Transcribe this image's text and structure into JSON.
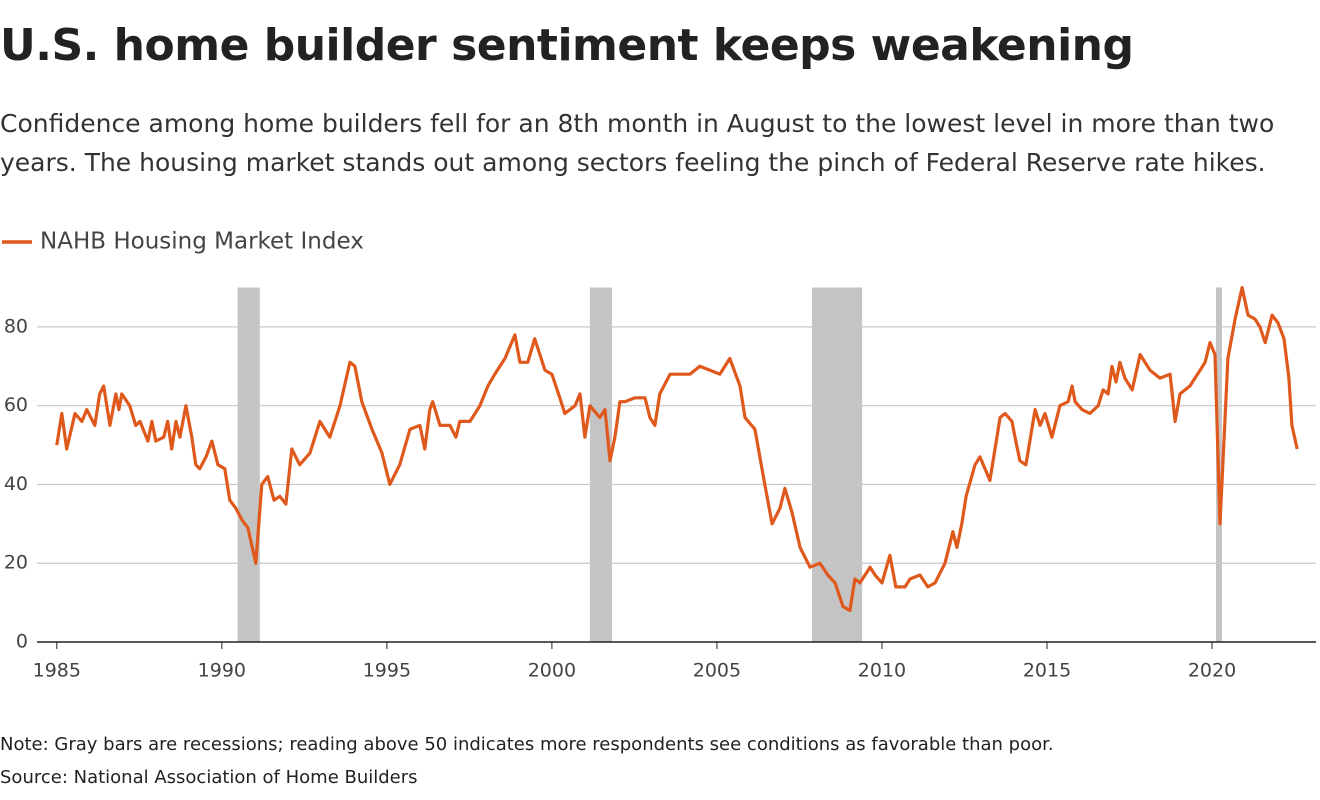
{
  "chart_data": {
    "type": "line",
    "title": "U.S. home builder sentiment keeps weakening",
    "subtitle": "Confidence among home builders fell for an 8th month in August to the lowest level in more than two years. The housing market stands out among sectors feeling the pinch of Federal Reserve rate hikes.",
    "note": "Note: Gray bars are recessions; reading above 50 indicates more respondents see conditions as favorable than poor.",
    "source": "Source: National Association of Home Builders",
    "recession_color": "#c4c4c4",
    "recessions": [
      [
        1990.48,
        1991.15
      ],
      [
        2001.15,
        2001.82
      ],
      [
        2007.88,
        2009.4
      ],
      [
        2020.12,
        2020.3
      ]
    ],
    "xlim": [
      1984.4,
      2023.15
    ],
    "xticks": [
      1985,
      1990,
      1995,
      2000,
      2005,
      2010,
      2015,
      2020
    ],
    "ylim": [
      0,
      90
    ],
    "yticks": [
      0,
      20,
      40,
      60,
      80
    ],
    "grid": true,
    "x": [
      1985,
      1985.15,
      1985.3,
      1985.55,
      1985.76,
      1985.91,
      1986.15,
      1986.3,
      1986.42,
      1986.61,
      1986.79,
      1986.88,
      1986.97,
      1987.21,
      1987.39,
      1987.52,
      1987.76,
      1987.88,
      1988,
      1988.24,
      1988.36,
      1988.48,
      1988.61,
      1988.73,
      1988.91,
      1989.09,
      1989.21,
      1989.33,
      1989.52,
      1989.7,
      1989.88,
      1990.09,
      1990.24,
      1990.42,
      1990.61,
      1990.79,
      1991.03,
      1991.21,
      1991.39,
      1991.58,
      1991.76,
      1991.94,
      1992.12,
      1992.36,
      1992.67,
      1992.97,
      1993.27,
      1993.58,
      1993.88,
      1994.03,
      1994.24,
      1994.55,
      1994.85,
      1995.09,
      1995.39,
      1995.7,
      1996,
      1996.15,
      1996.3,
      1996.39,
      1996.61,
      1996.91,
      1997.09,
      1997.21,
      1997.52,
      1997.82,
      1998.06,
      1998.27,
      1998.58,
      1998.88,
      1999.03,
      1999.27,
      1999.48,
      1999.79,
      2000,
      2000.24,
      2000.39,
      2000.7,
      2000.85,
      2001,
      2001.15,
      2001.45,
      2001.61,
      2001.76,
      2001.91,
      2002.06,
      2002.21,
      2002.52,
      2002.82,
      2002.97,
      2003.12,
      2003.27,
      2003.58,
      2003.88,
      2004.18,
      2004.48,
      2004.79,
      2005.09,
      2005.39,
      2005.7,
      2005.85,
      2006.15,
      2006.45,
      2006.67,
      2006.91,
      2007.06,
      2007.27,
      2007.52,
      2007.82,
      2008.12,
      2008.36,
      2008.58,
      2008.82,
      2009.03,
      2009.18,
      2009.33,
      2009.64,
      2009.79,
      2010,
      2010.24,
      2010.42,
      2010.7,
      2010.85,
      2011.15,
      2011.39,
      2011.61,
      2011.91,
      2012.15,
      2012.27,
      2012.42,
      2012.55,
      2012.82,
      2012.97,
      2013.27,
      2013.58,
      2013.73,
      2013.94,
      2014.03,
      2014.18,
      2014.36,
      2014.64,
      2014.79,
      2014.94,
      2015.15,
      2015.39,
      2015.64,
      2015.76,
      2015.85,
      2016.06,
      2016.3,
      2016.55,
      2016.7,
      2016.85,
      2016.97,
      2017.09,
      2017.21,
      2017.36,
      2017.58,
      2017.82,
      2018.12,
      2018.42,
      2018.73,
      2018.88,
      2019.03,
      2019.33,
      2019.64,
      2019.79,
      2019.94,
      2020.09,
      2020.24,
      2020.48,
      2020.7,
      2020.91,
      2021.09,
      2021.3,
      2021.45,
      2021.61,
      2021.82,
      2022,
      2022.18,
      2022.33,
      2022.42,
      2022.58
    ],
    "series": [
      {
        "name": "NAHB Housing Market Index",
        "color": "#e0591c",
        "values": [
          50,
          58,
          49,
          58,
          56,
          59,
          55,
          63,
          65,
          55,
          63,
          59,
          63,
          60,
          55,
          56,
          51,
          56,
          51,
          52,
          56,
          49,
          56,
          52,
          60,
          52,
          45,
          44,
          47,
          51,
          45,
          44,
          36,
          34,
          31,
          29,
          20,
          40,
          42,
          36,
          37,
          35,
          49,
          45,
          48,
          56,
          52,
          60,
          71,
          70,
          61,
          54,
          48,
          40,
          45,
          54,
          55,
          49,
          59,
          61,
          55,
          55,
          52,
          56,
          56,
          60,
          65,
          68,
          72,
          78,
          71,
          71,
          77,
          69,
          68,
          62,
          58,
          60,
          63,
          52,
          60,
          57,
          59,
          46,
          52,
          61,
          61,
          62,
          62,
          57,
          55,
          63,
          68,
          68,
          68,
          70,
          69,
          68,
          72,
          65,
          57,
          54,
          40,
          30,
          34,
          39,
          33,
          24,
          19,
          20,
          17,
          15,
          9,
          8,
          16,
          15,
          19,
          17,
          15,
          22,
          14,
          14,
          16,
          17,
          14,
          15,
          20,
          28,
          24,
          30,
          37,
          45,
          47,
          41,
          57,
          58,
          56,
          52,
          46,
          45,
          59,
          55,
          58,
          52,
          60,
          61,
          65,
          61,
          59,
          58,
          60,
          64,
          63,
          70,
          66,
          71,
          67,
          64,
          73,
          69,
          67,
          68,
          56,
          63,
          65,
          69,
          71,
          76,
          73,
          30,
          72,
          82,
          90,
          83,
          82,
          80,
          76,
          83,
          81,
          77,
          67,
          55,
          49
        ]
      }
    ]
  }
}
